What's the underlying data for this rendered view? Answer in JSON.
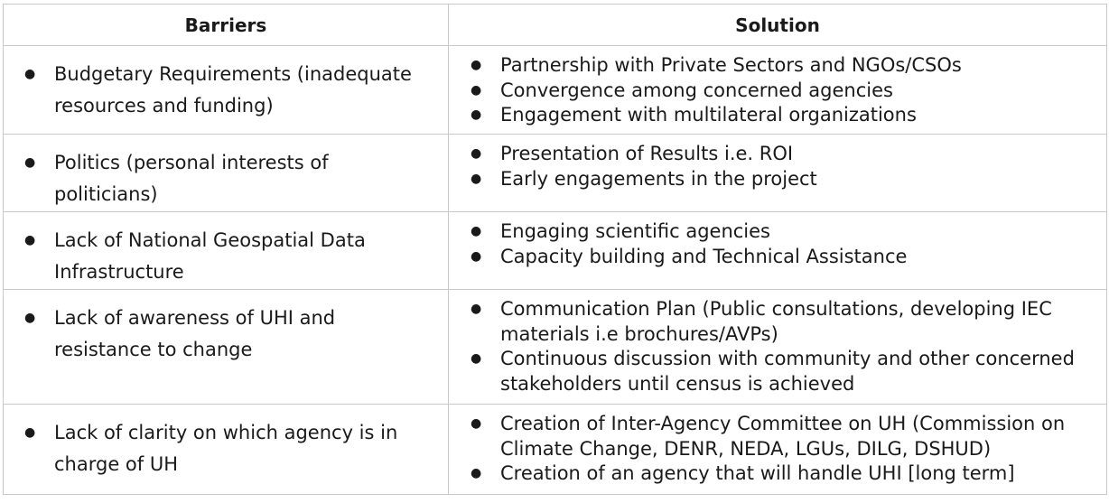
{
  "table": {
    "headers": {
      "barriers": "Barriers",
      "solution": "Solution"
    },
    "rows": [
      {
        "barrier": "Budgetary Requirements (inadequate resources and funding)",
        "solutions": [
          "Partnership with Private Sectors and NGOs/CSOs",
          "Convergence among concerned agencies",
          "Engagement with multilateral organizations"
        ]
      },
      {
        "barrier": "Politics (personal interests of politicians)",
        "solutions": [
          "Presentation of Results i.e. ROI",
          "Early engagements in the project"
        ]
      },
      {
        "barrier": "Lack of National Geospatial Data Infrastructure",
        "solutions": [
          "Engaging scientific agencies",
          "Capacity building and Technical Assistance"
        ]
      },
      {
        "barrier": "Lack of awareness of UHI and resistance to change",
        "solutions": [
          "Communication Plan (Public consultations, developing IEC materials i.e brochures/AVPs)",
          "Continuous discussion with community and other concerned stakeholders until census is achieved"
        ]
      },
      {
        "barrier": "Lack of clarity on which agency is in charge of UH",
        "solutions": [
          "Creation of Inter-Agency Committee on UH (Commission on Climate Change, DENR, NEDA, LGUs, DILG, DSHUD)",
          "Creation of an agency that will handle UHI [long term]"
        ]
      }
    ]
  }
}
